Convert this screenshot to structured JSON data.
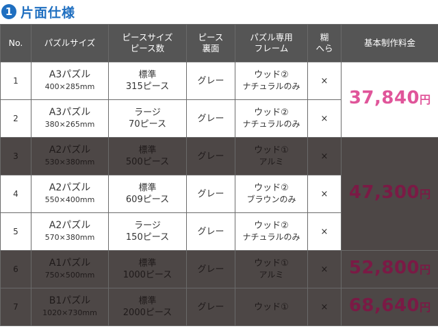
{
  "heading": {
    "number": "1",
    "title": "片面仕様"
  },
  "columns": [
    "No.",
    "パズルサイズ",
    "ピースサイズ ピース数",
    "ピース 裏面",
    "パズル専用 フレーム",
    "糊 へら",
    "基本制作料金"
  ],
  "rows": [
    {
      "no": "1",
      "size": "A3パズル",
      "dims": "400×285mm",
      "piece_type": "標準",
      "pieces": "315ピース",
      "back": "グレー",
      "frame1": "ウッド②",
      "frame2": "ナチュラルのみ",
      "glue": "×",
      "dim": false
    },
    {
      "no": "2",
      "size": "A3パズル",
      "dims": "380×265mm",
      "piece_type": "ラージ",
      "pieces": "70ピース",
      "back": "グレー",
      "frame1": "ウッド②",
      "frame2": "ナチュラルのみ",
      "glue": "×",
      "dim": false
    },
    {
      "no": "3",
      "size": "A2パズル",
      "dims": "530×380mm",
      "piece_type": "標準",
      "pieces": "500ピース",
      "back": "グレー",
      "frame1": "ウッド①",
      "frame2": "アルミ",
      "glue": "×",
      "dim": true
    },
    {
      "no": "4",
      "size": "A2パズル",
      "dims": "550×400mm",
      "piece_type": "標準",
      "pieces": "609ピース",
      "back": "グレー",
      "frame1": "ウッド②",
      "frame2": "ブラウンのみ",
      "glue": "×",
      "dim": false
    },
    {
      "no": "5",
      "size": "A2パズル",
      "dims": "570×380mm",
      "piece_type": "ラージ",
      "pieces": "150ピース",
      "back": "グレー",
      "frame1": "ウッド②",
      "frame2": "ナチュラルのみ",
      "glue": "×",
      "dim": false
    },
    {
      "no": "6",
      "size": "A1パズル",
      "dims": "750×500mm",
      "piece_type": "標準",
      "pieces": "1000ピース",
      "back": "グレー",
      "frame1": "ウッド①",
      "frame2": "アルミ",
      "glue": "×",
      "dim": true
    },
    {
      "no": "7",
      "size": "B1パズル",
      "dims": "1020×730mm",
      "piece_type": "標準",
      "pieces": "2000ピース",
      "back": "グレー",
      "frame1": "ウッド①",
      "frame2": "",
      "glue": "×",
      "dim": true
    }
  ],
  "prices": [
    {
      "amount": "37,840",
      "unit": "円"
    },
    {
      "amount": "47,300",
      "unit": "円"
    },
    {
      "amount": "52,800",
      "unit": "円"
    },
    {
      "amount": "68,640",
      "unit": "円"
    }
  ],
  "colors": {
    "accent": "#1f6fc0",
    "price": "#e0559a",
    "price_dim": "#7a1a45",
    "header_bg": "#555555",
    "dim_row_bg": "#4d4746"
  }
}
